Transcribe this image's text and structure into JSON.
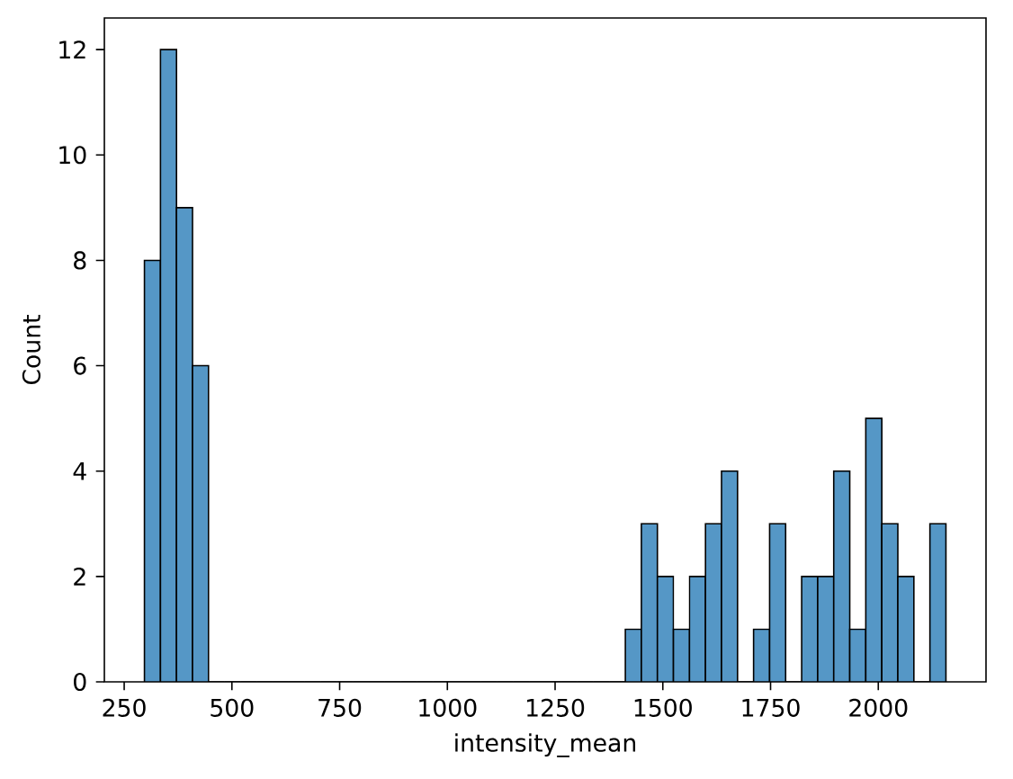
{
  "chart_data": {
    "type": "histogram",
    "xlabel": "intensity_mean",
    "ylabel": "Count",
    "bins": [
      297,
      334.2,
      371.4,
      408.6,
      445.8,
      483,
      520.2,
      557.4,
      594.6,
      631.8,
      669,
      706.2,
      743.4,
      780.6,
      817.8,
      855,
      892.2,
      929.4,
      966.6,
      1003.8,
      1041,
      1078.2,
      1115.4,
      1152.6,
      1189.8,
      1227,
      1264.2,
      1301.4,
      1338.6,
      1375.8,
      1413,
      1450.2,
      1487.4,
      1524.6,
      1561.8,
      1599,
      1636.2,
      1673.4,
      1710.6,
      1747.8,
      1785,
      1822.2,
      1859.4,
      1896.6,
      1933.8,
      1971,
      2008.2,
      2045.4,
      2082.6,
      2119.8,
      2157
    ],
    "values": [
      8,
      12,
      9,
      6,
      0,
      0,
      0,
      0,
      0,
      0,
      0,
      0,
      0,
      0,
      0,
      0,
      0,
      0,
      0,
      0,
      0,
      0,
      0,
      0,
      0,
      0,
      0,
      0,
      0,
      0,
      1,
      3,
      2,
      1,
      2,
      3,
      4,
      0,
      1,
      3,
      0,
      2,
      2,
      4,
      1,
      5,
      3,
      2,
      0,
      3
    ],
    "color": "#5597c6",
    "xlim": [
      204,
      2250
    ],
    "ylim": [
      0,
      12.6
    ],
    "xticks": [
      250,
      500,
      750,
      1000,
      1250,
      1500,
      1750,
      2000
    ],
    "yticks": [
      0,
      2,
      4,
      6,
      8,
      10,
      12
    ]
  }
}
